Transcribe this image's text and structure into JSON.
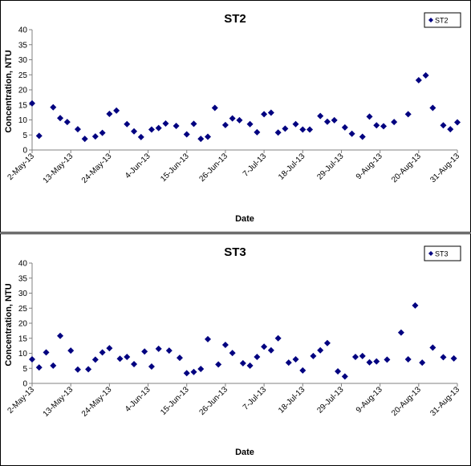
{
  "chart_data": [
    {
      "type": "scatter",
      "title": "ST2",
      "xlabel": "Date",
      "ylabel": "Concentration, NTU",
      "legend": "top-right",
      "xlim": [
        "2013-05-02",
        "2013-08-31"
      ],
      "xticks": [
        {
          "value": "2013-05-02",
          "label": "2-May-13"
        },
        {
          "value": "2013-05-13",
          "label": "13-May-13"
        },
        {
          "value": "2013-05-24",
          "label": "24-May-13"
        },
        {
          "value": "2013-06-04",
          "label": "4-Jun-13"
        },
        {
          "value": "2013-06-15",
          "label": "15-Jun-13"
        },
        {
          "value": "2013-06-26",
          "label": "26-Jun-13"
        },
        {
          "value": "2013-07-07",
          "label": "7-Jul-13"
        },
        {
          "value": "2013-07-18",
          "label": "18-Jul-13"
        },
        {
          "value": "2013-07-29",
          "label": "29-Jul-13"
        },
        {
          "value": "2013-08-09",
          "label": "9-Aug-13"
        },
        {
          "value": "2013-08-20",
          "label": "20-Aug-13"
        },
        {
          "value": "2013-08-31",
          "label": "31-Aug-13"
        }
      ],
      "ylim": [
        0,
        40
      ],
      "yticks": [
        0,
        5,
        10,
        15,
        20,
        25,
        30,
        35,
        40
      ],
      "series": [
        {
          "name": "ST2",
          "color": "#000080",
          "x": [
            "2013-05-02",
            "2013-05-04",
            "2013-05-08",
            "2013-05-10",
            "2013-05-12",
            "2013-05-15",
            "2013-05-17",
            "2013-05-20",
            "2013-05-22",
            "2013-05-24",
            "2013-05-26",
            "2013-05-29",
            "2013-05-31",
            "2013-06-02",
            "2013-06-05",
            "2013-06-07",
            "2013-06-09",
            "2013-06-12",
            "2013-06-15",
            "2013-06-17",
            "2013-06-19",
            "2013-06-21",
            "2013-06-23",
            "2013-06-26",
            "2013-06-28",
            "2013-06-30",
            "2013-07-03",
            "2013-07-05",
            "2013-07-07",
            "2013-07-09",
            "2013-07-11",
            "2013-07-13",
            "2013-07-16",
            "2013-07-18",
            "2013-07-20",
            "2013-07-23",
            "2013-07-25",
            "2013-07-27",
            "2013-07-30",
            "2013-08-01",
            "2013-08-04",
            "2013-08-06",
            "2013-08-08",
            "2013-08-10",
            "2013-08-13",
            "2013-08-17",
            "2013-08-20",
            "2013-08-22",
            "2013-08-24",
            "2013-08-27",
            "2013-08-29",
            "2013-08-31"
          ],
          "values": [
            15.5,
            4.7,
            14.2,
            10.6,
            9.3,
            6.9,
            3.7,
            4.5,
            5.7,
            12.0,
            13.1,
            8.6,
            6.2,
            4.3,
            6.8,
            7.3,
            8.8,
            8.0,
            5.2,
            8.7,
            3.7,
            4.4,
            14.0,
            8.3,
            10.5,
            9.9,
            8.6,
            5.9,
            11.9,
            12.4,
            5.8,
            7.1,
            8.6,
            6.8,
            6.8,
            11.3,
            9.4,
            9.9,
            7.5,
            5.4,
            4.4,
            11.1,
            8.2,
            7.9,
            9.3,
            11.9,
            23.2,
            24.8,
            14.0,
            8.2,
            6.9,
            9.2
          ]
        }
      ]
    },
    {
      "type": "scatter",
      "title": "ST3",
      "xlabel": "Date",
      "ylabel": "Concentration, NTU",
      "legend": "top-right",
      "xlim": [
        "2013-05-02",
        "2013-08-31"
      ],
      "xticks": [
        {
          "value": "2013-05-02",
          "label": "2-May-13"
        },
        {
          "value": "2013-05-13",
          "label": "13-May-13"
        },
        {
          "value": "2013-05-24",
          "label": "24-May-13"
        },
        {
          "value": "2013-06-04",
          "label": "4-Jun-13"
        },
        {
          "value": "2013-06-15",
          "label": "15-Jun-13"
        },
        {
          "value": "2013-06-26",
          "label": "26-Jun-13"
        },
        {
          "value": "2013-07-07",
          "label": "7-Jul-13"
        },
        {
          "value": "2013-07-18",
          "label": "18-Jul-13"
        },
        {
          "value": "2013-07-29",
          "label": "29-Jul-13"
        },
        {
          "value": "2013-08-09",
          "label": "9-Aug-13"
        },
        {
          "value": "2013-08-20",
          "label": "20-Aug-13"
        },
        {
          "value": "2013-08-31",
          "label": "31-Aug-13"
        }
      ],
      "ylim": [
        0,
        40
      ],
      "yticks": [
        0,
        5,
        10,
        15,
        20,
        25,
        30,
        35,
        40
      ],
      "series": [
        {
          "name": "ST3",
          "color": "#000080",
          "x": [
            "2013-05-02",
            "2013-05-04",
            "2013-05-06",
            "2013-05-08",
            "2013-05-10",
            "2013-05-13",
            "2013-05-15",
            "2013-05-18",
            "2013-05-20",
            "2013-05-22",
            "2013-05-24",
            "2013-05-27",
            "2013-05-29",
            "2013-05-31",
            "2013-06-03",
            "2013-06-05",
            "2013-06-07",
            "2013-06-10",
            "2013-06-13",
            "2013-06-15",
            "2013-06-17",
            "2013-06-19",
            "2013-06-21",
            "2013-06-24",
            "2013-06-26",
            "2013-06-28",
            "2013-07-01",
            "2013-07-03",
            "2013-07-05",
            "2013-07-07",
            "2013-07-09",
            "2013-07-11",
            "2013-07-14",
            "2013-07-16",
            "2013-07-18",
            "2013-07-21",
            "2013-07-23",
            "2013-07-25",
            "2013-07-28",
            "2013-07-30",
            "2013-08-02",
            "2013-08-04",
            "2013-08-06",
            "2013-08-08",
            "2013-08-11",
            "2013-08-15",
            "2013-08-17",
            "2013-08-19",
            "2013-08-21",
            "2013-08-24",
            "2013-08-27",
            "2013-08-30"
          ],
          "values": [
            8.0,
            5.3,
            10.3,
            5.9,
            15.8,
            10.9,
            4.6,
            4.7,
            7.9,
            10.3,
            11.7,
            8.2,
            8.8,
            6.4,
            10.6,
            5.6,
            11.5,
            10.9,
            8.5,
            3.4,
            3.8,
            4.8,
            14.7,
            6.3,
            12.8,
            10.1,
            6.7,
            5.9,
            8.8,
            12.2,
            11.0,
            15.0,
            6.9,
            8.0,
            4.3,
            9.1,
            11.0,
            13.4,
            4.0,
            2.3,
            8.8,
            9.1,
            7.0,
            7.3,
            7.9,
            16.9,
            8.0,
            25.9,
            6.9,
            11.9,
            8.7,
            8.3
          ]
        }
      ]
    }
  ]
}
